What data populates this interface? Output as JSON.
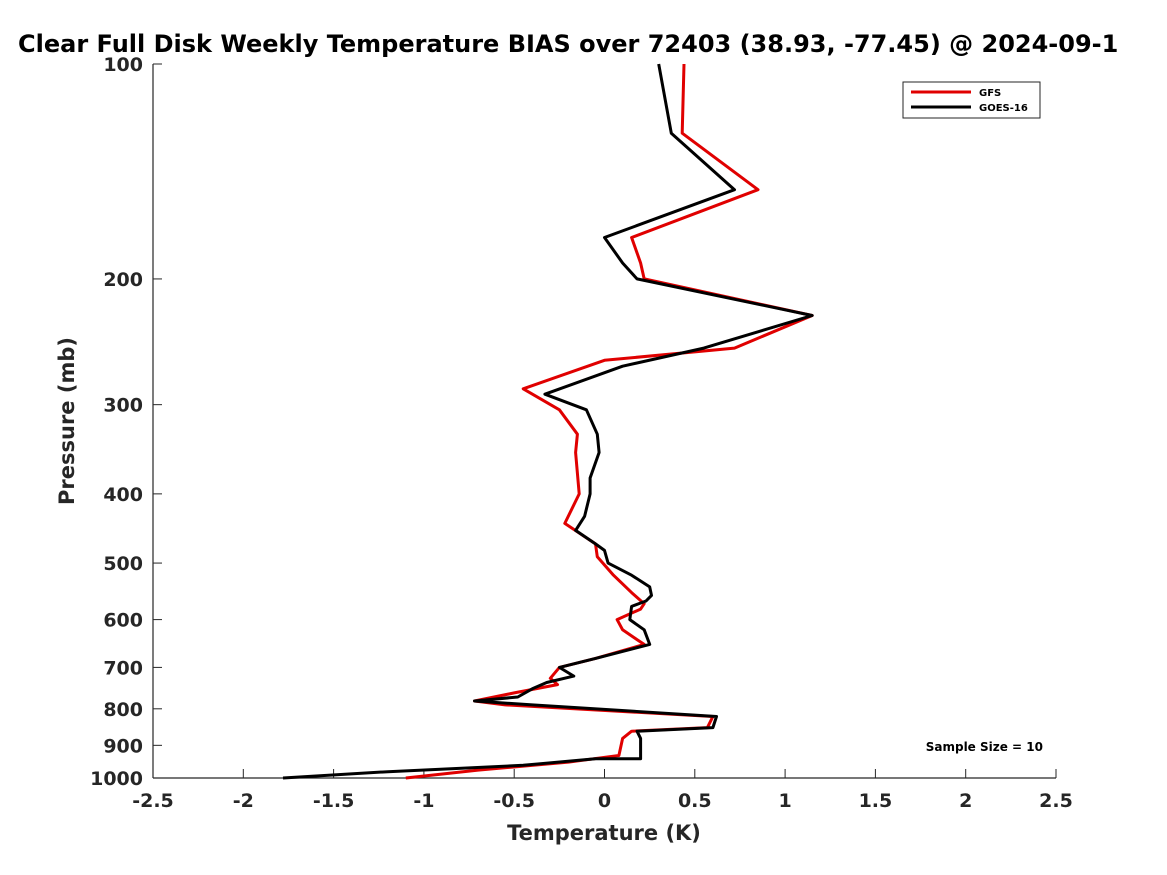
{
  "chart_data": {
    "type": "line",
    "title": "Clear Full Disk Weekly Temperature BIAS over 72403 (38.93, -77.45) @ 2024-09-1",
    "xlabel": "Temperature (K)",
    "ylabel": "Pressure (mb)",
    "xlim": [
      -2.5,
      2.5
    ],
    "ylim": [
      100,
      1000
    ],
    "yscale": "log",
    "yreversed": true,
    "xticks": [
      -2.5,
      -2,
      -1.5,
      -1,
      -0.5,
      0,
      0.5,
      1,
      1.5,
      2,
      2.5
    ],
    "xtick_labels": [
      "-2.5",
      "-2",
      "-1.5",
      "-1",
      "-0.5",
      "0",
      "0.5",
      "1",
      "1.5",
      "2",
      "2.5"
    ],
    "yticks": [
      100,
      200,
      300,
      400,
      500,
      600,
      700,
      800,
      900,
      1000
    ],
    "ytick_labels": [
      "100",
      "200",
      "300",
      "400",
      "500",
      "600",
      "700",
      "800",
      "900",
      "1000"
    ],
    "grid": false,
    "legend_position": "top-right",
    "annotation": "Sample Size = 10",
    "series": [
      {
        "name": "GFS",
        "color": "#e00000",
        "points": [
          [
            0.44,
            100
          ],
          [
            0.43,
            125
          ],
          [
            0.85,
            150
          ],
          [
            0.15,
            175
          ],
          [
            0.2,
            190
          ],
          [
            0.22,
            200
          ],
          [
            1.15,
            225
          ],
          [
            0.72,
            250
          ],
          [
            0.0,
            260
          ],
          [
            -0.45,
            285
          ],
          [
            -0.25,
            305
          ],
          [
            -0.15,
            330
          ],
          [
            -0.16,
            350
          ],
          [
            -0.14,
            400
          ],
          [
            -0.22,
            440
          ],
          [
            -0.05,
            470
          ],
          [
            -0.04,
            490
          ],
          [
            0.05,
            520
          ],
          [
            0.15,
            550
          ],
          [
            0.22,
            570
          ],
          [
            0.2,
            580
          ],
          [
            0.07,
            600
          ],
          [
            0.1,
            620
          ],
          [
            0.18,
            640
          ],
          [
            0.22,
            650
          ],
          [
            -0.05,
            680
          ],
          [
            -0.25,
            700
          ],
          [
            -0.3,
            725
          ],
          [
            -0.26,
            740
          ],
          [
            -0.5,
            760
          ],
          [
            -0.72,
            780
          ],
          [
            -0.55,
            790
          ],
          [
            0.6,
            820
          ],
          [
            0.57,
            850
          ],
          [
            0.15,
            860
          ],
          [
            0.1,
            880
          ],
          [
            0.08,
            930
          ],
          [
            -0.2,
            950
          ],
          [
            -0.7,
            975
          ],
          [
            -1.1,
            1000
          ]
        ]
      },
      {
        "name": "GOES-16",
        "color": "#000000",
        "points": [
          [
            0.3,
            100
          ],
          [
            0.37,
            125
          ],
          [
            0.72,
            150
          ],
          [
            0.0,
            175
          ],
          [
            0.1,
            190
          ],
          [
            0.18,
            200
          ],
          [
            1.15,
            225
          ],
          [
            0.55,
            250
          ],
          [
            0.1,
            265
          ],
          [
            -0.33,
            290
          ],
          [
            -0.1,
            305
          ],
          [
            -0.04,
            330
          ],
          [
            -0.03,
            350
          ],
          [
            -0.08,
            380
          ],
          [
            -0.08,
            400
          ],
          [
            -0.11,
            430
          ],
          [
            -0.16,
            450
          ],
          [
            -0.05,
            470
          ],
          [
            0.0,
            480
          ],
          [
            0.02,
            500
          ],
          [
            0.15,
            520
          ],
          [
            0.25,
            540
          ],
          [
            0.26,
            555
          ],
          [
            0.23,
            565
          ],
          [
            0.15,
            575
          ],
          [
            0.14,
            600
          ],
          [
            0.22,
            620
          ],
          [
            0.25,
            650
          ],
          [
            -0.05,
            680
          ],
          [
            -0.25,
            700
          ],
          [
            -0.17,
            720
          ],
          [
            -0.32,
            735
          ],
          [
            -0.4,
            750
          ],
          [
            -0.48,
            770
          ],
          [
            -0.72,
            780
          ],
          [
            -0.4,
            790
          ],
          [
            0.62,
            820
          ],
          [
            0.6,
            850
          ],
          [
            0.18,
            860
          ],
          [
            0.2,
            880
          ],
          [
            0.2,
            940
          ],
          [
            -0.05,
            940
          ],
          [
            -0.45,
            960
          ],
          [
            -1.2,
            980
          ],
          [
            -1.78,
            1000
          ]
        ]
      }
    ]
  }
}
